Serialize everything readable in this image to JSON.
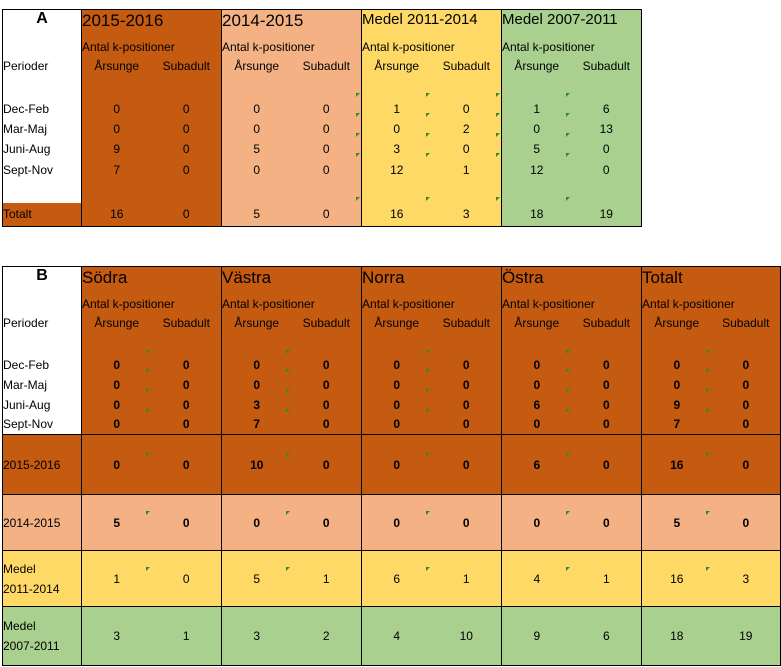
{
  "table_a": {
    "letter": "A",
    "row_label_header": "Perioder",
    "sub_header": "Antal k-positioner",
    "col_arsunge": "Årsunge",
    "col_subadult": "Subadult",
    "groups": [
      {
        "title": "2015-2016",
        "color": "#c55a11"
      },
      {
        "title": "2014-2015",
        "color": "#f4b183"
      },
      {
        "title": "Medel 2011-2014",
        "color": "#ffd966"
      },
      {
        "title": "Medel 2007-2011",
        "color": "#a9d08e"
      }
    ],
    "rows": [
      {
        "label": "Dec-Feb",
        "values": [
          "0",
          "0",
          "0",
          "0",
          "1",
          "0",
          "1",
          "6"
        ]
      },
      {
        "label": "Mar-Maj",
        "values": [
          "0",
          "0",
          "0",
          "0",
          "0",
          "2",
          "0",
          "13"
        ]
      },
      {
        "label": "Juni-Aug",
        "values": [
          "9",
          "0",
          "5",
          "0",
          "3",
          "0",
          "5",
          "0"
        ]
      },
      {
        "label": "Sept-Nov",
        "values": [
          "7",
          "0",
          "0",
          "0",
          "12",
          "1",
          "12",
          "0"
        ]
      }
    ],
    "total": {
      "label": "Totalt",
      "values": [
        "16",
        "0",
        "5",
        "0",
        "16",
        "3",
        "18",
        "19"
      ]
    }
  },
  "table_b": {
    "letter": "B",
    "row_label_header": "Perioder",
    "sub_header": "Antal k-positioner",
    "col_arsunge": "Årsunge",
    "col_subadult": "Subadult",
    "groups": [
      "Södra",
      "Västra",
      "Norra",
      "Östra",
      "Totalt"
    ],
    "rows": [
      {
        "label": "Dec-Feb",
        "values": [
          "0",
          "0",
          "0",
          "0",
          "0",
          "0",
          "0",
          "0",
          "0",
          "0"
        ]
      },
      {
        "label": "Mar-Maj",
        "values": [
          "0",
          "0",
          "0",
          "0",
          "0",
          "0",
          "0",
          "0",
          "0",
          "0"
        ]
      },
      {
        "label": "Juni-Aug",
        "values": [
          "0",
          "0",
          "3",
          "0",
          "0",
          "0",
          "6",
          "0",
          "9",
          "0"
        ]
      },
      {
        "label": "Sept-Nov",
        "values": [
          "0",
          "0",
          "7",
          "0",
          "0",
          "0",
          "0",
          "0",
          "7",
          "0"
        ]
      }
    ],
    "summary": [
      {
        "label": "2015-2016",
        "color": "#c55a11",
        "values": [
          "0",
          "0",
          "10",
          "0",
          "0",
          "0",
          "6",
          "0",
          "16",
          "0"
        ]
      },
      {
        "label": "2014-2015",
        "color": "#f4b183",
        "values": [
          "5",
          "0",
          "0",
          "0",
          "0",
          "0",
          "0",
          "0",
          "5",
          "0"
        ]
      },
      {
        "label_line1": "Medel",
        "label_line2": "2011-2014",
        "color": "#ffd966",
        "values": [
          "1",
          "0",
          "5",
          "1",
          "6",
          "1",
          "4",
          "1",
          "16",
          "3"
        ]
      },
      {
        "label_line1": "Medel",
        "label_line2": "2007-2011",
        "color": "#a9d08e",
        "values": [
          "3",
          "1",
          "3",
          "2",
          "4",
          "10",
          "9",
          "6",
          "18",
          "19"
        ]
      }
    ]
  }
}
